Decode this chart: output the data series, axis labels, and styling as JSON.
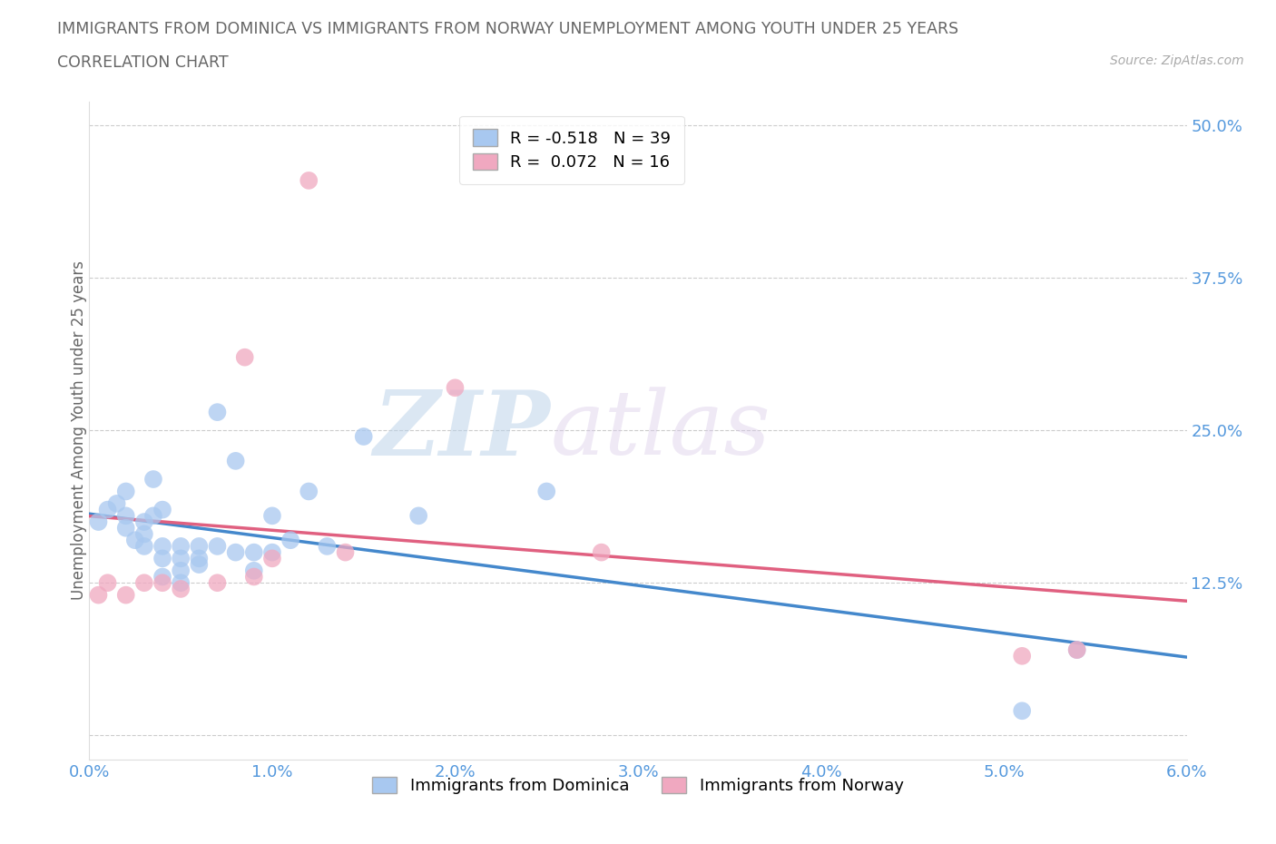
{
  "title_line1": "IMMIGRANTS FROM DOMINICA VS IMMIGRANTS FROM NORWAY UNEMPLOYMENT AMONG YOUTH UNDER 25 YEARS",
  "title_line2": "CORRELATION CHART",
  "source_text": "Source: ZipAtlas.com",
  "watermark_zip": "ZIP",
  "watermark_atlas": "atlas",
  "ylabel": "Unemployment Among Youth under 25 years",
  "xlim": [
    0.0,
    0.06
  ],
  "ylim": [
    -0.02,
    0.52
  ],
  "xticks": [
    0.0,
    0.01,
    0.02,
    0.03,
    0.04,
    0.05,
    0.06
  ],
  "xtick_labels": [
    "0.0%",
    "1.0%",
    "2.0%",
    "3.0%",
    "4.0%",
    "5.0%",
    "6.0%"
  ],
  "yticks": [
    0.0,
    0.125,
    0.25,
    0.375,
    0.5
  ],
  "ytick_labels": [
    "",
    "12.5%",
    "25.0%",
    "37.5%",
    "50.0%"
  ],
  "dominica_color": "#a8c8f0",
  "norway_color": "#f0a8c0",
  "dominica_R": -0.518,
  "dominica_N": 39,
  "norway_R": 0.072,
  "norway_N": 16,
  "dominica_label": "Immigrants from Dominica",
  "norway_label": "Immigrants from Norway",
  "trend_dominica_color": "#4488cc",
  "trend_norway_color": "#e06080",
  "background_color": "#ffffff",
  "grid_color": "#cccccc",
  "title_color": "#666666",
  "axis_color": "#5599dd",
  "dominica_x": [
    0.0005,
    0.001,
    0.0015,
    0.002,
    0.002,
    0.002,
    0.0025,
    0.003,
    0.003,
    0.003,
    0.0035,
    0.0035,
    0.004,
    0.004,
    0.004,
    0.004,
    0.005,
    0.005,
    0.005,
    0.005,
    0.006,
    0.006,
    0.006,
    0.007,
    0.007,
    0.008,
    0.008,
    0.009,
    0.009,
    0.01,
    0.01,
    0.011,
    0.012,
    0.013,
    0.015,
    0.018,
    0.025,
    0.051,
    0.054
  ],
  "dominica_y": [
    0.175,
    0.185,
    0.19,
    0.2,
    0.18,
    0.17,
    0.16,
    0.175,
    0.165,
    0.155,
    0.21,
    0.18,
    0.185,
    0.155,
    0.145,
    0.13,
    0.155,
    0.145,
    0.135,
    0.125,
    0.155,
    0.145,
    0.14,
    0.265,
    0.155,
    0.225,
    0.15,
    0.15,
    0.135,
    0.18,
    0.15,
    0.16,
    0.2,
    0.155,
    0.245,
    0.18,
    0.2,
    0.02,
    0.07
  ],
  "norway_x": [
    0.0005,
    0.001,
    0.002,
    0.003,
    0.004,
    0.005,
    0.007,
    0.0085,
    0.009,
    0.01,
    0.012,
    0.014,
    0.02,
    0.028,
    0.051,
    0.054
  ],
  "norway_y": [
    0.115,
    0.125,
    0.115,
    0.125,
    0.125,
    0.12,
    0.125,
    0.31,
    0.13,
    0.145,
    0.455,
    0.15,
    0.285,
    0.15,
    0.065,
    0.07
  ]
}
